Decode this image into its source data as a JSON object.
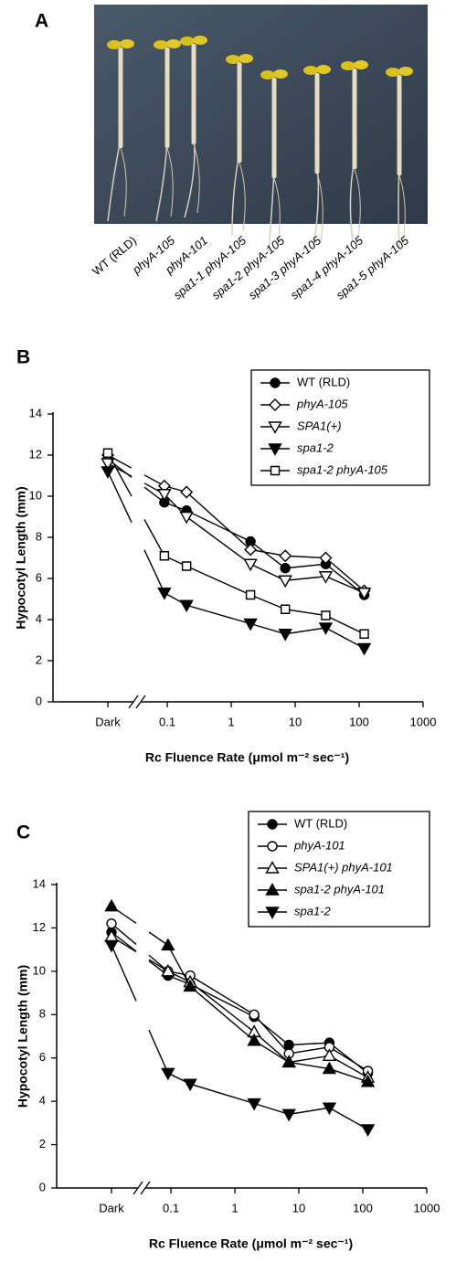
{
  "panel_a": {
    "label": "A",
    "seedlings": [
      {
        "name": "WT (RLD)",
        "italic": false
      },
      {
        "name": "phyA-105",
        "italic": true
      },
      {
        "name": "phyA-101",
        "italic": true
      },
      {
        "name": "spa1-1 phyA-105",
        "italic": true
      },
      {
        "name": "spa1-2 phyA-105",
        "italic": true
      },
      {
        "name": "spa1-3 phyA-105",
        "italic": true
      },
      {
        "name": "spa1-4 phyA-105",
        "italic": true
      },
      {
        "name": "spa1-5 phyA-105",
        "italic": true
      }
    ]
  },
  "chart_data": [
    {
      "type": "line",
      "panel_label": "B",
      "ylabel": "Hypocotyl Length (mm)",
      "xlabel": "Rc Fluence Rate (μmol m⁻² sec⁻¹)",
      "x_category": "Dark",
      "xscale": "log",
      "x": [
        0.09,
        0.2,
        2,
        7,
        30,
        120
      ],
      "xlim": [
        0.05,
        1000
      ],
      "xticks": [
        0.1,
        1,
        10,
        100,
        1000
      ],
      "ylim": [
        0,
        14
      ],
      "yticks": [
        0,
        2,
        4,
        6,
        8,
        10,
        12,
        14
      ],
      "series": [
        {
          "name": "WT (RLD)",
          "italic": false,
          "marker": "circle",
          "filled": true,
          "color": "#000000",
          "dark": 11.8,
          "values": [
            9.7,
            9.3,
            7.8,
            6.5,
            6.7,
            5.2
          ]
        },
        {
          "name": "phyA-105",
          "italic": true,
          "marker": "diamond",
          "filled": false,
          "color": "#000000",
          "dark": 12.0,
          "values": [
            10.5,
            10.2,
            7.4,
            7.1,
            7.0,
            5.4
          ]
        },
        {
          "name": "SPA1(+)",
          "italic": true,
          "marker": "triangle-down",
          "filled": false,
          "color": "#000000",
          "dark": 11.6,
          "values": [
            10.1,
            9.0,
            6.7,
            5.9,
            6.1,
            5.3
          ]
        },
        {
          "name": "spa1-2",
          "italic": true,
          "marker": "triangle-down",
          "filled": true,
          "color": "#000000",
          "dark": 11.2,
          "values": [
            5.3,
            4.7,
            3.8,
            3.3,
            3.6,
            2.6
          ]
        },
        {
          "name": "spa1-2 phyA-105",
          "italic": true,
          "marker": "square",
          "filled": false,
          "color": "#000000",
          "dark": 12.1,
          "values": [
            7.1,
            6.6,
            5.2,
            4.5,
            4.2,
            3.3
          ]
        }
      ]
    },
    {
      "type": "line",
      "panel_label": "C",
      "ylabel": "Hypocotyl Length (mm)",
      "xlabel": "Rc Fluence Rate (μmol m⁻² sec⁻¹)",
      "x_category": "Dark",
      "xscale": "log",
      "x": [
        0.09,
        0.2,
        2,
        7,
        30,
        120
      ],
      "xlim": [
        0.05,
        1000
      ],
      "xticks": [
        0.1,
        1,
        10,
        100,
        1000
      ],
      "ylim": [
        0,
        14
      ],
      "yticks": [
        0,
        2,
        4,
        6,
        8,
        10,
        12,
        14
      ],
      "series": [
        {
          "name": "WT (RLD)",
          "italic": false,
          "marker": "circle",
          "filled": true,
          "color": "#000000",
          "dark": 11.8,
          "values": [
            9.8,
            9.4,
            7.9,
            6.6,
            6.7,
            5.3
          ]
        },
        {
          "name": "phyA-101",
          "italic": true,
          "marker": "circle",
          "filled": false,
          "color": "#000000",
          "dark": 12.2,
          "values": [
            10.0,
            9.8,
            8.0,
            6.2,
            6.5,
            5.4
          ]
        },
        {
          "name": "SPA1(+) phyA-101",
          "italic": true,
          "marker": "triangle-up",
          "filled": false,
          "color": "#000000",
          "dark": 11.6,
          "values": [
            10.0,
            9.5,
            7.2,
            5.8,
            6.1,
            5.1
          ]
        },
        {
          "name": "spa1-2 phyA-101",
          "italic": true,
          "marker": "triangle-up",
          "filled": true,
          "color": "#000000",
          "dark": 13.0,
          "values": [
            11.2,
            9.3,
            6.8,
            5.8,
            5.5,
            4.9
          ]
        },
        {
          "name": "spa1-2",
          "italic": true,
          "marker": "triangle-down",
          "filled": true,
          "color": "#000000",
          "dark": 11.2,
          "values": [
            5.3,
            4.8,
            3.9,
            3.4,
            3.7,
            2.7
          ]
        }
      ]
    }
  ]
}
